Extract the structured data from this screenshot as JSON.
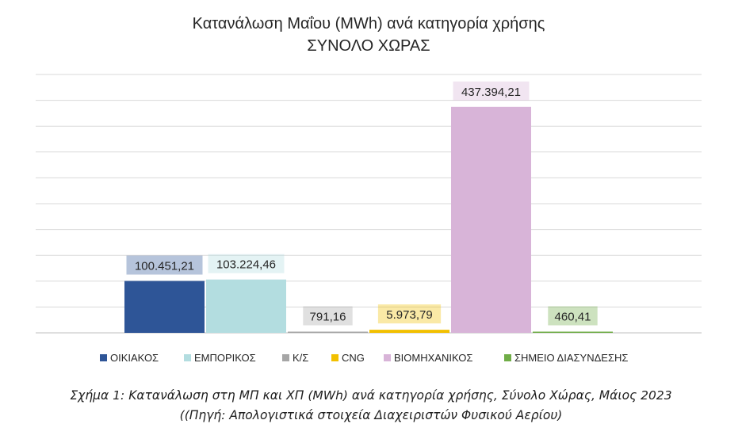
{
  "chart_data": {
    "type": "bar",
    "title": "Κατανάλωση Μαΐου (MWh) ανά κατηγορία χρήσης",
    "subtitle": "ΣΥΝΟΛΟ ΧΩΡΑΣ",
    "xlabel": "",
    "ylabel": "",
    "ylim": [
      0,
      500000
    ],
    "grid": true,
    "legend_position": "bottom",
    "series": [
      {
        "name": "ΟΙΚΙΑΚΟΣ",
        "value": 100451.21,
        "label": "100.451,21",
        "color": "#2e5597"
      },
      {
        "name": "ΕΜΠΟΡΙΚΟΣ",
        "value": 103224.46,
        "label": "103.224,46",
        "color": "#b3dde0"
      },
      {
        "name": "Κ/Σ",
        "value": 791.16,
        "label": "791,16",
        "color": "#a6a6a6"
      },
      {
        "name": "CNG",
        "value": 5973.79,
        "label": "5.973,79",
        "color": "#f2c000"
      },
      {
        "name": "ΒΙΟΜΗΧΑΝΙΚΟΣ",
        "value": 437394.21,
        "label": "437.394,21",
        "color": "#d8b4d8"
      },
      {
        "name": "ΣΗΜΕΙΟ ΔΙΑΣΥΝΔΕΣΗΣ",
        "value": 460.41,
        "label": "460,41",
        "color": "#70ad47"
      }
    ]
  },
  "caption": {
    "line1": "Σχήμα 1: Κατανάλωση στη ΜΠ και ΧΠ (MWh) ανά κατηγορία χρήσης, Σύνολο Χώρας, Μάιος 2023",
    "line2": "((Πηγή: Απολογιστικά στοιχεία Διαχειριστών Φυσικού Αερίου)"
  }
}
